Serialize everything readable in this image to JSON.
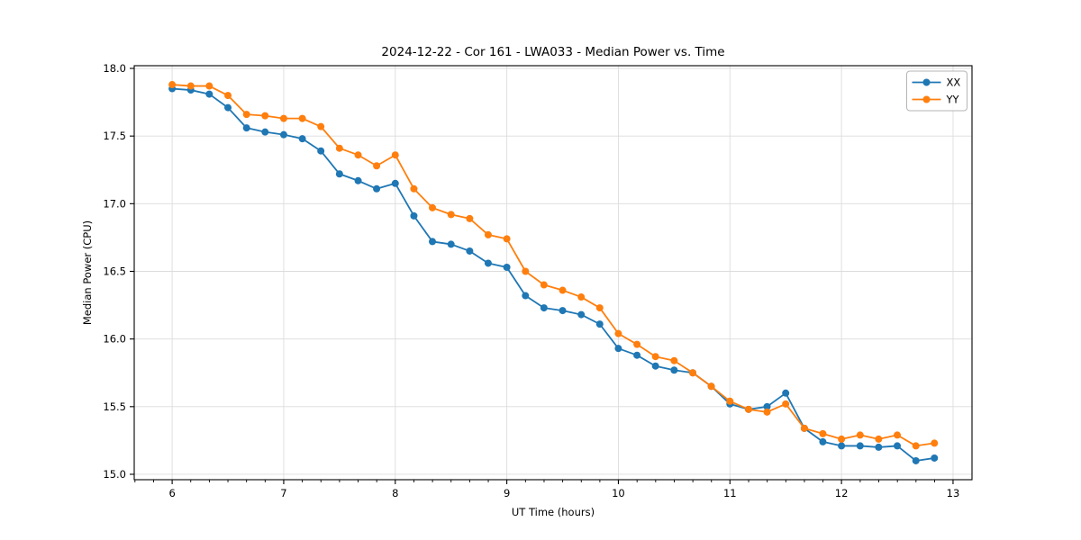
{
  "chart_data": {
    "type": "line",
    "title": "2024-12-22 - Cor 161 - LWA033 - Median Power vs. Time",
    "xlabel": "UT Time (hours)",
    "ylabel": "Median Power (CPU)",
    "xlim": [
      5.66,
      13.17
    ],
    "ylim": [
      14.96,
      18.02
    ],
    "xticks": [
      6,
      7,
      8,
      9,
      10,
      11,
      12,
      13
    ],
    "yticks": [
      15.0,
      15.5,
      16.0,
      16.5,
      17.0,
      17.5,
      18.0
    ],
    "minor_tick_step_x": 0.1667,
    "grid": true,
    "legend_position": "upper right",
    "marker": "circle",
    "background_color": "#ffffff",
    "grid_color": "#dcdcdc",
    "spine_color": "#000000",
    "x": [
      6.0,
      6.167,
      6.333,
      6.5,
      6.667,
      6.833,
      7.0,
      7.167,
      7.333,
      7.5,
      7.667,
      7.833,
      8.0,
      8.167,
      8.333,
      8.5,
      8.667,
      8.833,
      9.0,
      9.167,
      9.333,
      9.5,
      9.667,
      9.833,
      10.0,
      10.167,
      10.333,
      10.5,
      10.667,
      10.833,
      11.0,
      11.167,
      11.333,
      11.5,
      11.667,
      11.833,
      12.0,
      12.167,
      12.333,
      12.5,
      12.667,
      12.833
    ],
    "series": [
      {
        "name": "XX",
        "color": "#1f77b4",
        "values": [
          17.85,
          17.84,
          17.81,
          17.71,
          17.56,
          17.53,
          17.51,
          17.48,
          17.39,
          17.22,
          17.17,
          17.11,
          17.15,
          16.91,
          16.72,
          16.7,
          16.65,
          16.56,
          16.53,
          16.32,
          16.23,
          16.21,
          16.18,
          16.11,
          15.93,
          15.88,
          15.8,
          15.77,
          15.75,
          15.65,
          15.52,
          15.48,
          15.5,
          15.6,
          15.34,
          15.24,
          15.21,
          15.21,
          15.2,
          15.21,
          15.1,
          15.12
        ]
      },
      {
        "name": "YY",
        "color": "#ff7f0e",
        "values": [
          17.88,
          17.87,
          17.87,
          17.8,
          17.66,
          17.65,
          17.63,
          17.63,
          17.57,
          17.41,
          17.36,
          17.28,
          17.36,
          17.11,
          16.97,
          16.92,
          16.89,
          16.77,
          16.74,
          16.5,
          16.4,
          16.36,
          16.31,
          16.23,
          16.04,
          15.96,
          15.87,
          15.84,
          15.75,
          15.65,
          15.54,
          15.48,
          15.46,
          15.52,
          15.34,
          15.3,
          15.26,
          15.29,
          15.26,
          15.29,
          15.21,
          15.23
        ]
      }
    ]
  }
}
